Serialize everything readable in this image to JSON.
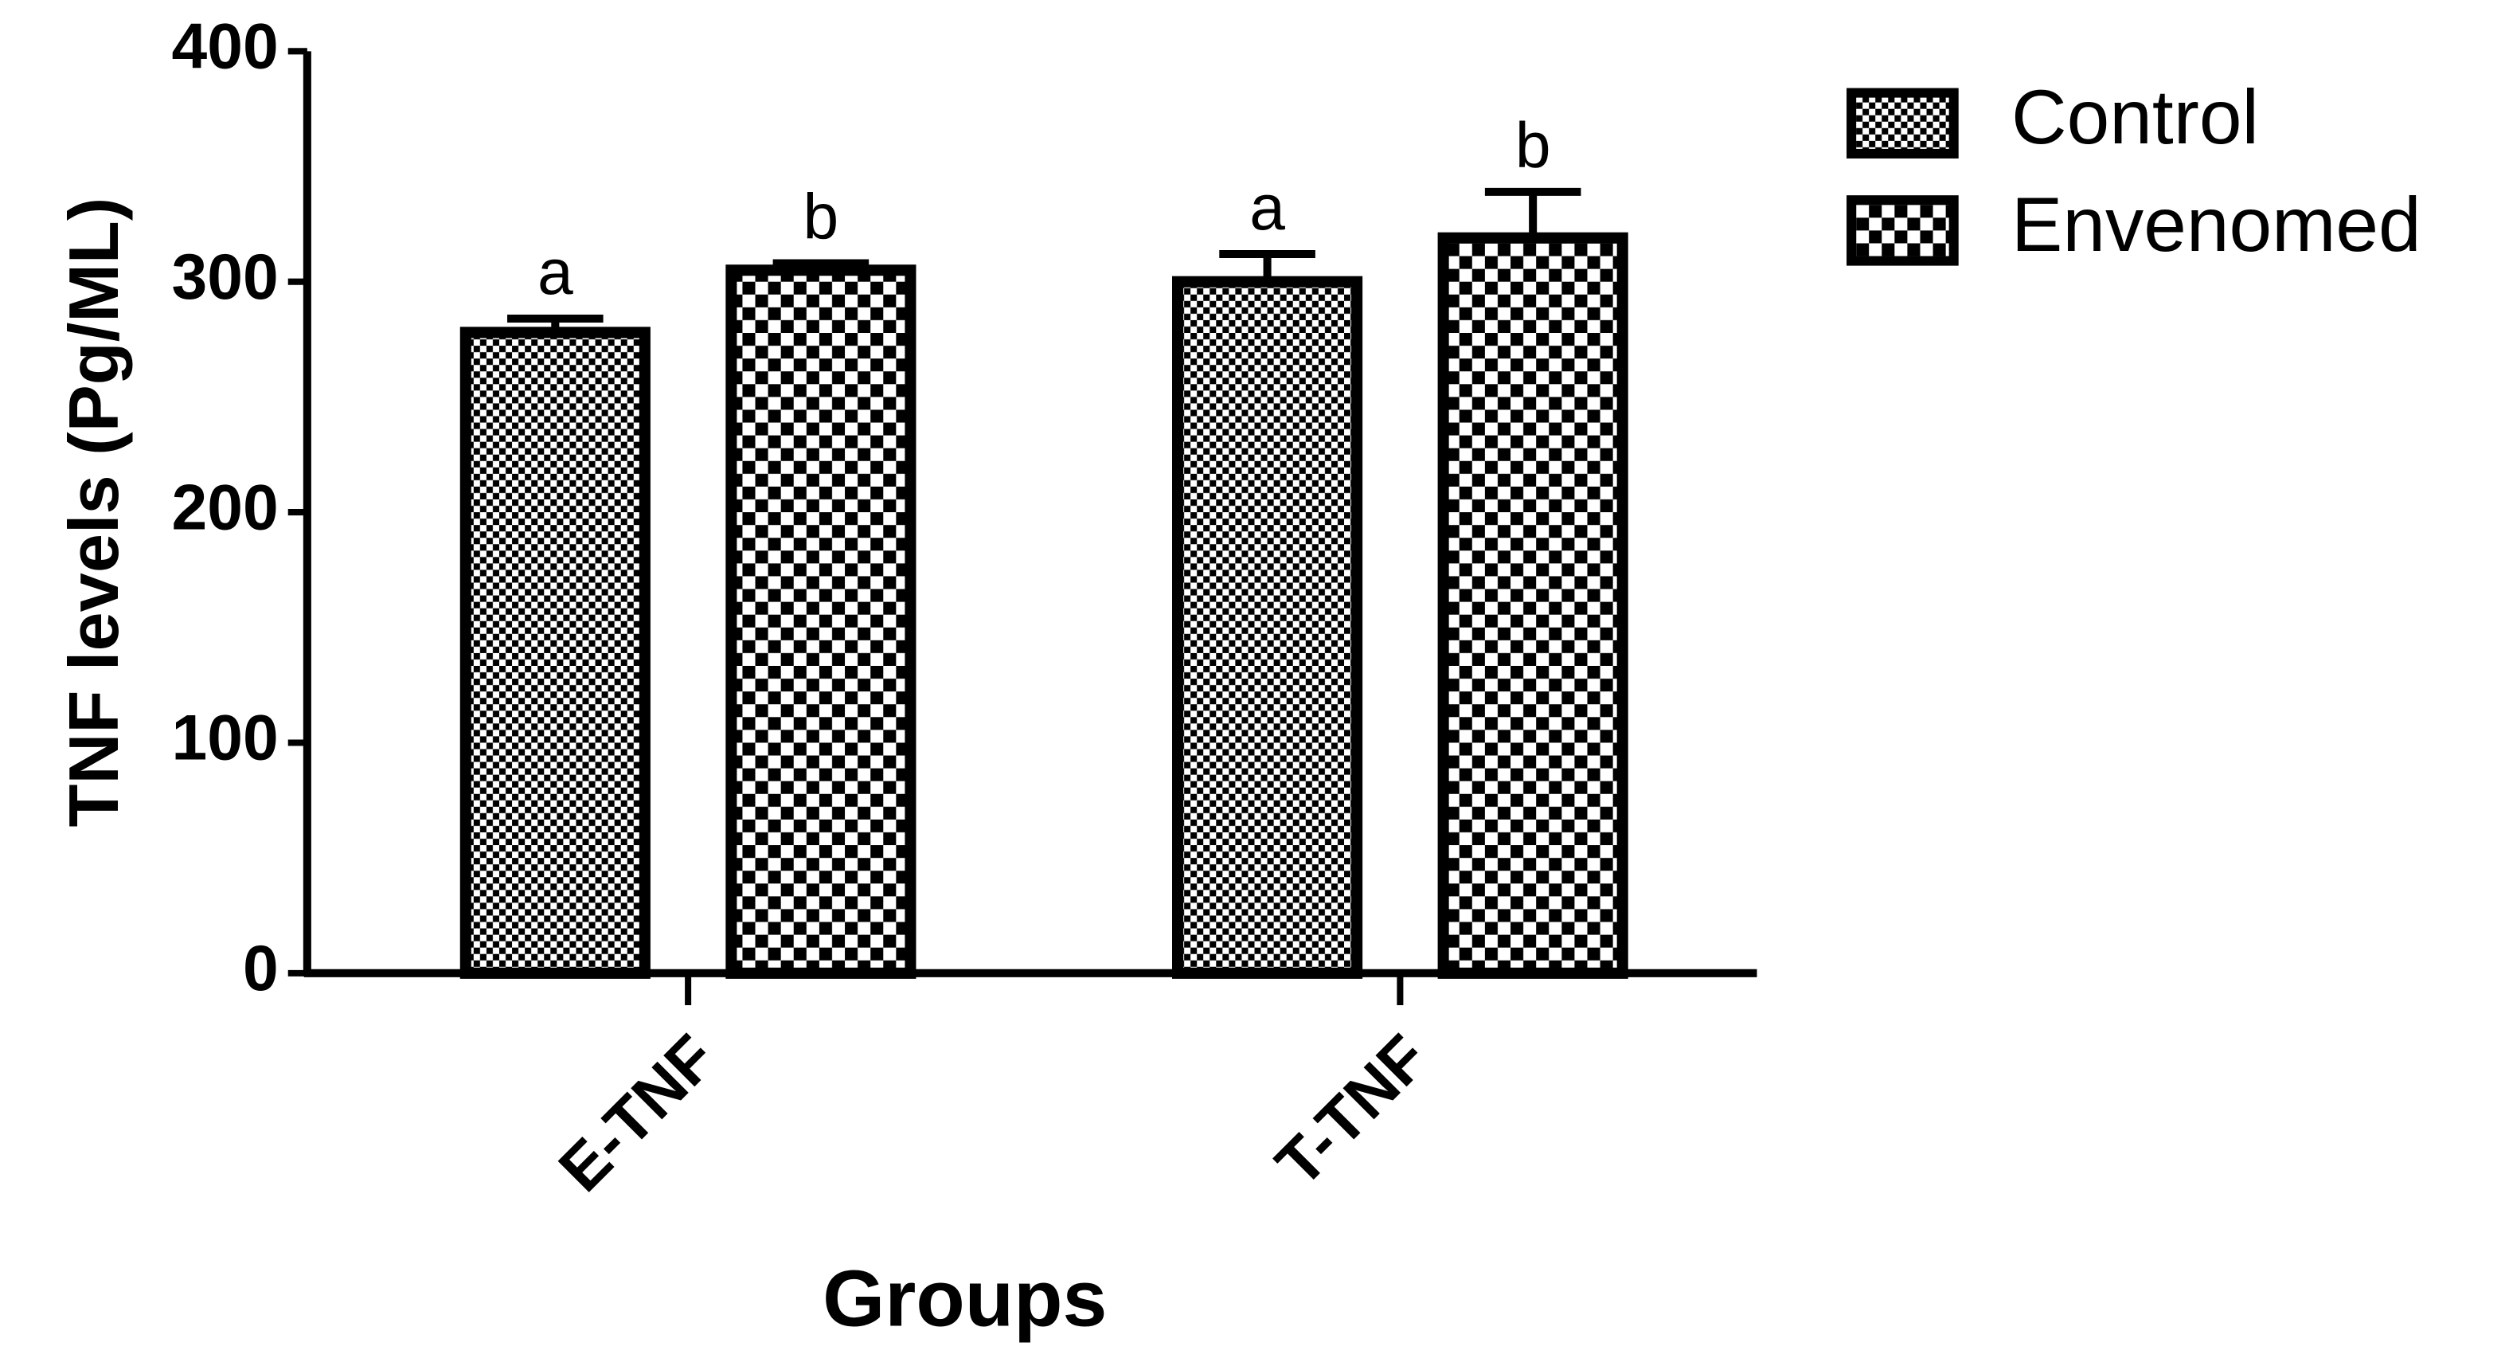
{
  "chart_data": {
    "type": "bar",
    "y_label": "TNF levels (Pg/ML)",
    "x_label": "Groups",
    "categories": [
      "E-TNF",
      "T-TNF"
    ],
    "series": [
      {
        "name": "Control",
        "color": "#000000",
        "values": [
          278,
          300
        ],
        "errors": [
          6,
          12
        ],
        "annotations": [
          "a",
          "a"
        ]
      },
      {
        "name": "Envenomed",
        "color": "#000000",
        "values": [
          305,
          319
        ],
        "errors": [
          3,
          20
        ],
        "annotations": [
          "b",
          "b"
        ]
      }
    ],
    "ylim": [
      0,
      400
    ],
    "yticks": [
      0,
      100,
      200,
      300,
      400
    ]
  }
}
